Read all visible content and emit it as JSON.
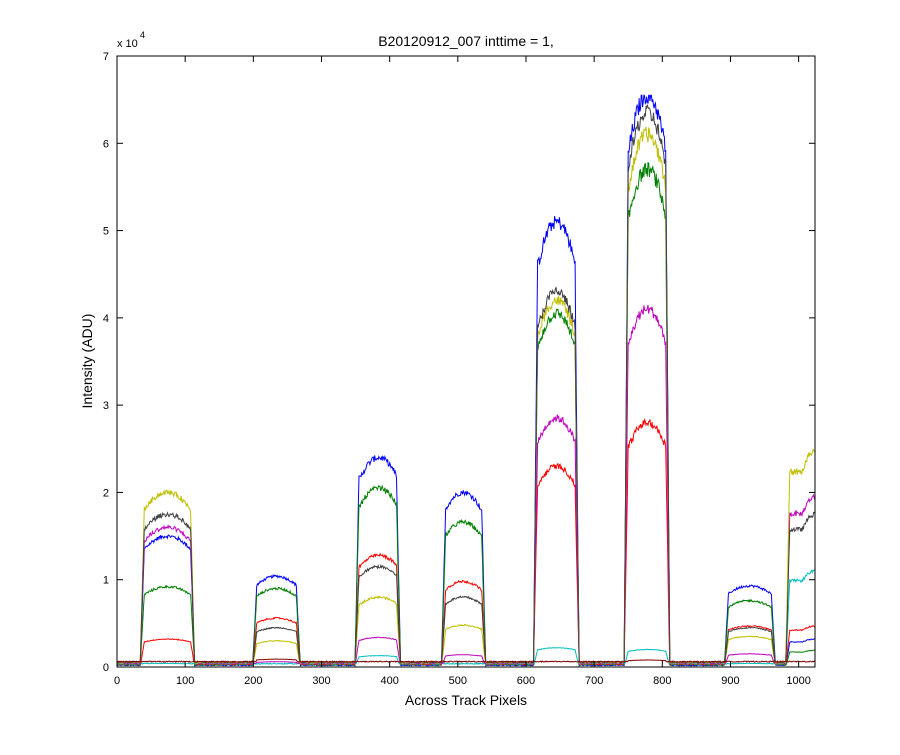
{
  "chart_data": {
    "type": "line",
    "title": "B20120912_007 inttime = 1,",
    "xlabel": "Across Track Pixels",
    "ylabel": "Intensity (ADU)",
    "xlim": [
      0,
      1024
    ],
    "ylim": [
      0,
      70000
    ],
    "x_ticks": [
      0,
      100,
      200,
      300,
      400,
      500,
      600,
      700,
      800,
      900,
      1000
    ],
    "y_ticks": [
      0,
      1,
      2,
      3,
      4,
      5,
      6,
      7
    ],
    "y_multiplier": "x 10",
    "y_multiplier_exponent": "4",
    "grid": false,
    "legend": "none",
    "peaks": [
      {
        "x_start": 40,
        "x_end": 108,
        "center": 74
      },
      {
        "x_start": 205,
        "x_end": 263,
        "center": 234
      },
      {
        "x_start": 355,
        "x_end": 410,
        "center": 384
      },
      {
        "x_start": 482,
        "x_end": 535,
        "center": 508
      },
      {
        "x_start": 617,
        "x_end": 672,
        "center": 645
      },
      {
        "x_start": 750,
        "x_end": 805,
        "center": 778
      },
      {
        "x_start": 897,
        "x_end": 960,
        "center": 928
      },
      {
        "x_start": 987,
        "x_end": 1024,
        "center": 1024
      }
    ],
    "series": [
      {
        "color": "#0000ff",
        "peak_values": [
          15000,
          10400,
          24000,
          20000,
          51000,
          65500,
          9300,
          3200
        ]
      },
      {
        "color": "#008000",
        "peak_values": [
          9200,
          9000,
          20500,
          16600,
          40500,
          57000,
          7600,
          1900
        ]
      },
      {
        "color": "#ff0000",
        "peak_values": [
          3200,
          5600,
          12800,
          9800,
          23000,
          28000,
          4700,
          4700
        ]
      },
      {
        "color": "#00bfbf",
        "peak_values": [
          400,
          100,
          1300,
          300,
          2200,
          2000,
          400,
          11000
        ]
      },
      {
        "color": "#bf00bf",
        "peak_values": [
          16000,
          600,
          3400,
          1400,
          28500,
          41000,
          1500,
          19500
        ]
      },
      {
        "color": "#bfbf00",
        "peak_values": [
          20000,
          3000,
          8000,
          4800,
          42000,
          61000,
          3500,
          24800
        ]
      },
      {
        "color": "#404040",
        "peak_values": [
          17500,
          4500,
          11500,
          8000,
          43000,
          63500,
          4500,
          17500
        ]
      },
      {
        "color": "#800000",
        "peak_values": [
          300,
          900,
          400,
          200,
          600,
          800,
          300,
          500
        ]
      }
    ]
  }
}
